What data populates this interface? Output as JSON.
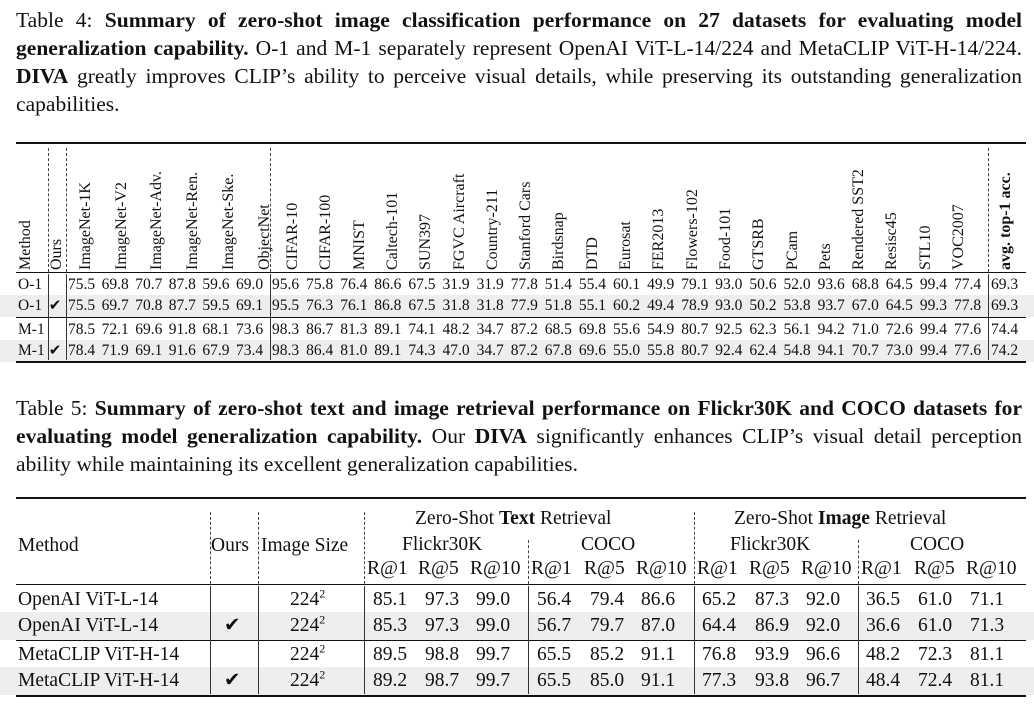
{
  "table4": {
    "caption": {
      "label": "Table 4:",
      "title": "Summary of zero-shot image classification performance on 27 datasets for evaluating model generalization capability.",
      "body_part1": "O-1 and M-1 separately represent OpenAI ViT-L-14/224 and MetaCLIP ViT-H-14/224.",
      "highlight": "DIVA",
      "body_part2": "greatly improves CLIP’s ability to perceive visual details, while preserving its outstanding generalization capabilities."
    },
    "columns": [
      "Method",
      "Ours",
      "ImageNet-1K",
      "ImageNet-V2",
      "ImageNet-Adv.",
      "ImageNet-Ren.",
      "ImageNet-Ske.",
      "ObjectNet",
      "CIFAR-10",
      "CIFAR-100",
      "MNIST",
      "Caltech-101",
      "SUN397",
      "FGVC Aircraft",
      "Country-211",
      "Stanford Cars",
      "Birdsnap",
      "DTD",
      "Eurosat",
      "FER2013",
      "Flowers-102",
      "Food-101",
      "GTSRB",
      "PCam",
      "Pets",
      "Rendered SST2",
      "Resisc45",
      "STL10",
      "VOC2007",
      "avg. top-1 acc."
    ],
    "rows": [
      {
        "method": "O-1",
        "ours": "",
        "values": [
          "75.5",
          "69.8",
          "70.7",
          "87.8",
          "59.6",
          "69.0",
          "95.6",
          "75.8",
          "76.4",
          "86.6",
          "67.5",
          "31.9",
          "31.9",
          "77.8",
          "51.4",
          "55.4",
          "60.1",
          "49.9",
          "79.1",
          "93.0",
          "50.6",
          "52.0",
          "93.6",
          "68.8",
          "64.5",
          "99.4",
          "77.4",
          "69.3"
        ]
      },
      {
        "method": "O-1",
        "ours": "✔",
        "values": [
          "75.5",
          "69.7",
          "70.8",
          "87.7",
          "59.5",
          "69.1",
          "95.5",
          "76.3",
          "76.1",
          "86.8",
          "67.5",
          "31.8",
          "31.8",
          "77.9",
          "51.8",
          "55.1",
          "60.2",
          "49.4",
          "78.9",
          "93.0",
          "50.2",
          "53.8",
          "93.7",
          "67.0",
          "64.5",
          "99.3",
          "77.8",
          "69.3"
        ]
      },
      {
        "method": "M-1",
        "ours": "",
        "values": [
          "78.5",
          "72.1",
          "69.6",
          "91.8",
          "68.1",
          "73.6",
          "98.3",
          "86.7",
          "81.3",
          "89.1",
          "74.1",
          "48.2",
          "34.7",
          "87.2",
          "68.5",
          "69.8",
          "55.6",
          "54.9",
          "80.7",
          "92.5",
          "62.3",
          "56.1",
          "94.2",
          "71.0",
          "72.6",
          "99.4",
          "77.6",
          "74.4"
        ]
      },
      {
        "method": "M-1",
        "ours": "✔",
        "values": [
          "78.4",
          "71.9",
          "69.1",
          "91.6",
          "67.9",
          "73.4",
          "98.3",
          "86.4",
          "81.0",
          "89.1",
          "74.3",
          "47.0",
          "34.7",
          "87.2",
          "67.8",
          "69.6",
          "55.0",
          "55.8",
          "80.7",
          "92.4",
          "62.4",
          "54.8",
          "94.1",
          "70.7",
          "73.0",
          "99.4",
          "77.6",
          "74.2"
        ]
      }
    ]
  },
  "table5": {
    "caption": {
      "label": "Table 5:",
      "title": "Summary of zero-shot text and image retrieval performance on Flickr30K and COCO datasets for evaluating model generalization capability.",
      "body_part1": "Our",
      "highlight": "DIVA",
      "body_part2": "significantly enhances CLIP’s visual detail perception ability while maintaining its excellent generalization capabilities."
    },
    "headers": {
      "method": "Method",
      "ours": "Ours",
      "image_size": "Image Size",
      "text_group_pre": "Zero-Shot",
      "text_group_bold": "Text",
      "text_group_post": "Retrieval",
      "image_group_pre": "Zero-Shot",
      "image_group_bold": "Image",
      "image_group_post": "Retrieval",
      "flickr_text": "Flickr30K",
      "coco_text": "COCO",
      "flickr_image": "Flickr30K",
      "coco_image": "COCO",
      "metrics": [
        "R@1",
        "R@5",
        "R@10",
        "R@1",
        "R@5",
        "R@10",
        "R@1",
        "R@5",
        "R@10",
        "R@1",
        "R@5",
        "R@10"
      ]
    },
    "rows": [
      {
        "method": "OpenAI ViT-L-14",
        "ours": "",
        "size_base": "224",
        "size_exp": "2",
        "values": [
          "85.1",
          "97.3",
          "99.0",
          "56.4",
          "79.4",
          "86.6",
          "65.2",
          "87.3",
          "92.0",
          "36.5",
          "61.0",
          "71.1"
        ]
      },
      {
        "method": "OpenAI ViT-L-14",
        "ours": "✔",
        "size_base": "224",
        "size_exp": "2",
        "values": [
          "85.3",
          "97.3",
          "99.0",
          "56.7",
          "79.7",
          "87.0",
          "64.4",
          "86.9",
          "92.0",
          "36.6",
          "61.0",
          "71.3"
        ]
      },
      {
        "method": "MetaCLIP ViT-H-14",
        "ours": "",
        "size_base": "224",
        "size_exp": "2",
        "values": [
          "89.5",
          "98.8",
          "99.7",
          "65.5",
          "85.2",
          "91.1",
          "76.8",
          "93.9",
          "96.6",
          "48.2",
          "72.3",
          "81.1"
        ]
      },
      {
        "method": "MetaCLIP ViT-H-14",
        "ours": "✔",
        "size_base": "224",
        "size_exp": "2",
        "values": [
          "89.2",
          "98.7",
          "99.7",
          "65.5",
          "85.0",
          "91.1",
          "77.3",
          "93.8",
          "96.7",
          "48.4",
          "72.4",
          "81.1"
        ]
      }
    ]
  }
}
